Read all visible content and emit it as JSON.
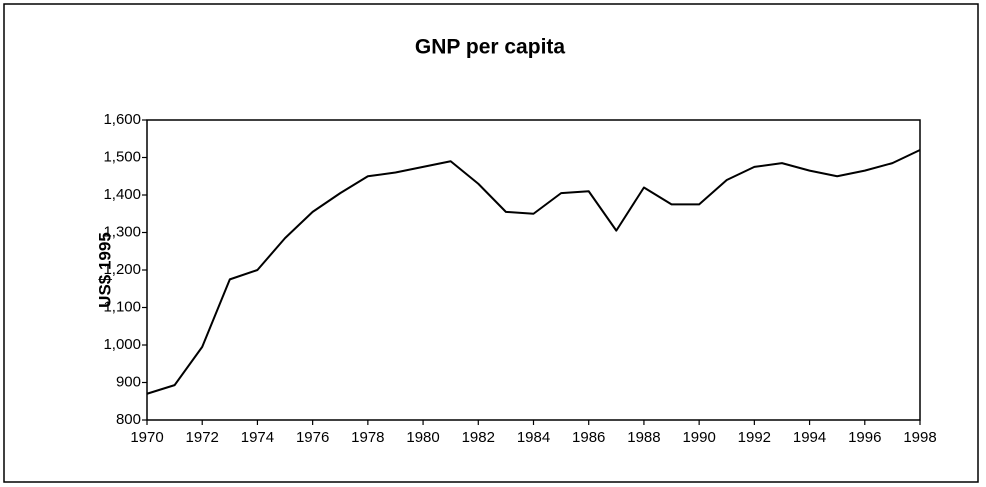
{
  "chart_data": {
    "type": "line",
    "title": "GNP per capita",
    "y_label": "US$ 1995",
    "x": [
      1970,
      1971,
      1972,
      1973,
      1974,
      1975,
      1976,
      1977,
      1978,
      1979,
      1980,
      1981,
      1982,
      1983,
      1984,
      1985,
      1986,
      1987,
      1988,
      1989,
      1990,
      1991,
      1992,
      1993,
      1994,
      1995,
      1996,
      1997,
      1998
    ],
    "series": [
      {
        "color": "#000000",
        "values": [
          870,
          893,
          995,
          1175,
          1200,
          1285,
          1355,
          1405,
          1450,
          1460,
          1475,
          1490,
          1430,
          1355,
          1350,
          1405,
          1410,
          1305,
          1420,
          1375,
          1375,
          1440,
          1475,
          1485,
          1465,
          1450,
          1465,
          1485,
          1520
        ]
      }
    ],
    "xlim": [
      1970,
      1998
    ],
    "xticks": [
      1970,
      1972,
      1974,
      1976,
      1978,
      1980,
      1982,
      1984,
      1986,
      1988,
      1990,
      1992,
      1994,
      1996,
      1998
    ],
    "ylim": [
      800,
      1600
    ],
    "yticks": [
      800,
      900,
      {
        "value": 1000,
        "label": "1,000"
      },
      {
        "value": 1100,
        "label": "1,100"
      },
      {
        "value": 1200,
        "label": "1,200"
      },
      {
        "value": 1300,
        "label": "1,300"
      },
      {
        "value": 1400,
        "label": "1,400"
      },
      {
        "value": 1500,
        "label": "1,500"
      },
      {
        "value": 1600,
        "label": "1,600"
      }
    ],
    "grid": false
  }
}
